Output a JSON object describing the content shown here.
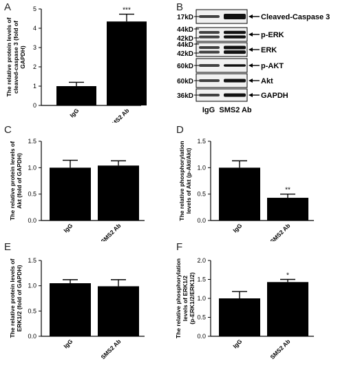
{
  "panels": {
    "A": "A",
    "B": "B",
    "C": "C",
    "D": "D",
    "E": "E",
    "F": "F"
  },
  "chart_data": [
    {
      "panel": "A",
      "type": "bar",
      "categories": [
        "IgG",
        "SMS2 Ab"
      ],
      "values": [
        1.0,
        4.35
      ],
      "errors": [
        0.2,
        0.38
      ],
      "significance": [
        "",
        "***"
      ],
      "ylabel": "The relative protein levels of cleaved-caspase 3 (fold of GAPDH)",
      "ylim": [
        0,
        5
      ],
      "yticks": [
        "0",
        "1",
        "2",
        "3",
        "4",
        "5"
      ]
    },
    {
      "panel": "C",
      "type": "bar",
      "categories": [
        "IgG",
        "SMS2 Ab"
      ],
      "values": [
        1.0,
        1.04
      ],
      "errors": [
        0.14,
        0.09
      ],
      "significance": [
        "",
        ""
      ],
      "ylabel": "The relative protein levels of Akt (fold of GAPDH)",
      "ylim": [
        0,
        1.5
      ],
      "yticks": [
        "0.0",
        "0.5",
        "1.0",
        "1.5"
      ]
    },
    {
      "panel": "D",
      "type": "bar",
      "categories": [
        "IgG",
        "SMS2 Ab"
      ],
      "values": [
        1.0,
        0.43
      ],
      "errors": [
        0.13,
        0.07
      ],
      "significance": [
        "",
        "**"
      ],
      "ylabel": "The relative phosphorylation levels of Akt (p-Akt/Akt)",
      "ylim": [
        0,
        1.5
      ],
      "yticks": [
        "0.0",
        "0.5",
        "1.0",
        "1.5"
      ]
    },
    {
      "panel": "E",
      "type": "bar",
      "categories": [
        "IgG",
        "SMS2 Ab"
      ],
      "values": [
        1.05,
        0.99
      ],
      "errors": [
        0.07,
        0.13
      ],
      "significance": [
        "",
        ""
      ],
      "ylabel": "The relative protein levels of ERK1/2 (fold of GAPDH)",
      "ylim": [
        0,
        1.5
      ],
      "yticks": [
        "0.0",
        "0.5",
        "1.0",
        "1.5"
      ]
    },
    {
      "panel": "F",
      "type": "bar",
      "categories": [
        "IgG",
        "SMS2 Ab"
      ],
      "values": [
        1.0,
        1.43
      ],
      "errors": [
        0.18,
        0.07
      ],
      "significance": [
        "",
        "*"
      ],
      "ylabel": "The relative phosphorylation levels of ERK1/2 (p-ERK1/2/ERK1/2)",
      "ylim": [
        0,
        2.0
      ],
      "yticks": [
        "0.0",
        "0.5",
        "1.0",
        "1.5",
        "2.0"
      ]
    }
  ],
  "blot": {
    "rows": [
      {
        "kd": [
          "17kD"
        ],
        "label": "Cleaved-Caspase 3",
        "ratio": 0.72
      },
      {
        "kd": [
          "44kD",
          "42kD"
        ],
        "label": "p-ERK",
        "ratio": 0.85
      },
      {
        "kd": [
          "44kD",
          "42kD"
        ],
        "label": "ERK",
        "ratio": 1.0
      },
      {
        "kd": [
          "60kD"
        ],
        "label": "p-AKT",
        "ratio": 0.6
      },
      {
        "kd": [
          "60kD"
        ],
        "label": "Akt",
        "ratio": 1.0
      },
      {
        "kd": [
          "36kD"
        ],
        "label": "GAPDH",
        "ratio": 1.0
      }
    ],
    "lanes": [
      "IgG",
      "SMS2 Ab"
    ]
  }
}
